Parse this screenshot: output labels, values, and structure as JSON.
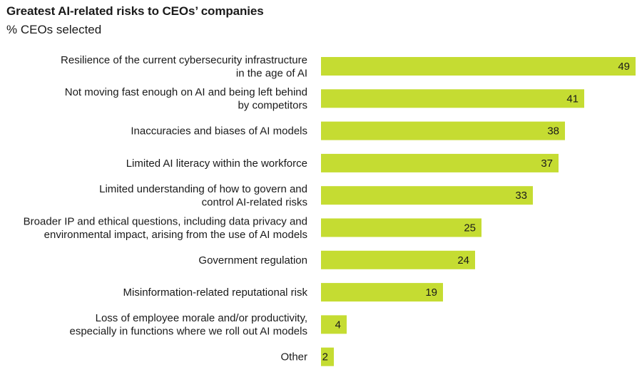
{
  "chart_data": {
    "type": "bar",
    "orientation": "horizontal",
    "title": "Greatest AI-related risks to CEOs’ companies",
    "subtitle": "% CEOs selected",
    "xlabel": "",
    "ylabel": "",
    "xlim": [
      0,
      49
    ],
    "grid": false,
    "bar_color": "#c5dc32",
    "categories": [
      [
        "Resilience of the current cybersecurity infrastructure",
        "in the age of AI"
      ],
      [
        "Not moving fast enough on AI and being left behind",
        "by competitors"
      ],
      [
        "Inaccuracies and biases of AI models"
      ],
      [
        "Limited AI literacy within the workforce"
      ],
      [
        "Limited understanding of how to govern and",
        "control AI-related risks"
      ],
      [
        "Broader IP and ethical questions, including data privacy and",
        "environmental impact, arising from the use of AI models"
      ],
      [
        "Government regulation"
      ],
      [
        "Misinformation-related reputational risk"
      ],
      [
        "Loss of employee morale and/or productivity,",
        "especially in functions where we roll out AI models"
      ],
      [
        "Other"
      ]
    ],
    "values": [
      49,
      41,
      38,
      37,
      33,
      25,
      24,
      19,
      4,
      2
    ]
  }
}
